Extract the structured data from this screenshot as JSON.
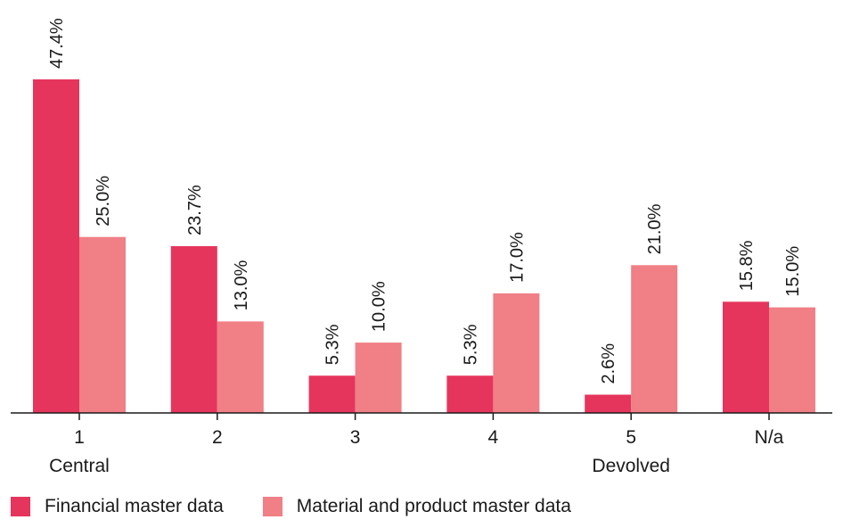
{
  "colors": {
    "financial": "#e5355c",
    "material": "#f07f86",
    "axis": "#1a1a1a",
    "text": "#1a1a1a"
  },
  "chart_data": {
    "type": "bar",
    "title": "",
    "xlabel": "",
    "ylabel": "",
    "categories": [
      "1",
      "2",
      "3",
      "4",
      "5",
      "N/a"
    ],
    "category_sublabels": [
      "Central",
      "",
      "",
      "",
      "Devolved",
      ""
    ],
    "series": [
      {
        "name": "Financial master data",
        "values": [
          47.4,
          23.7,
          5.3,
          5.3,
          2.6,
          15.8
        ]
      },
      {
        "name": "Material and product master data",
        "values": [
          25.0,
          13.0,
          10.0,
          17.0,
          21.0,
          15.0
        ]
      }
    ],
    "value_labels": [
      [
        "47.4%",
        "23.7%",
        "5.3%",
        "5.3%",
        "2.6%",
        "15.8%"
      ],
      [
        "25.0%",
        "13.0%",
        "10.0%",
        "17.0%",
        "21.0%",
        "15.0%"
      ]
    ],
    "ylim": [
      0,
      47.4
    ],
    "grid": false,
    "legend_position": "bottom-left"
  }
}
